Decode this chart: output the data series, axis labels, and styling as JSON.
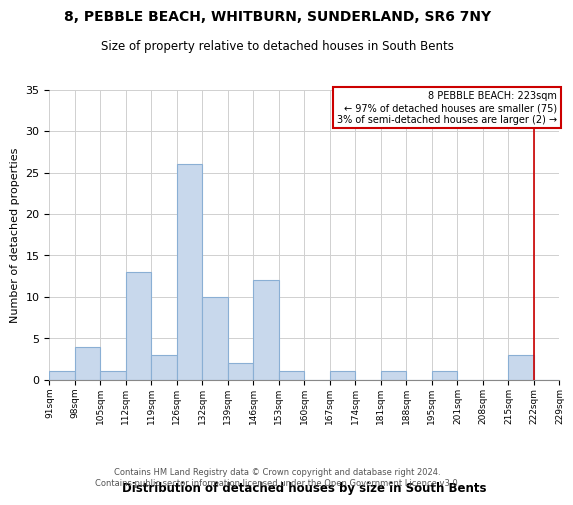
{
  "title": "8, PEBBLE BEACH, WHITBURN, SUNDERLAND, SR6 7NY",
  "subtitle": "Size of property relative to detached houses in South Bents",
  "xlabel": "Distribution of detached houses by size in South Bents",
  "ylabel": "Number of detached properties",
  "categories": [
    "91sqm",
    "98sqm",
    "105sqm",
    "112sqm",
    "119sqm",
    "126sqm",
    "132sqm",
    "139sqm",
    "146sqm",
    "153sqm",
    "160sqm",
    "167sqm",
    "174sqm",
    "181sqm",
    "188sqm",
    "195sqm",
    "201sqm",
    "208sqm",
    "215sqm",
    "222sqm",
    "229sqm"
  ],
  "values": [
    1,
    4,
    1,
    13,
    3,
    26,
    10,
    2,
    12,
    1,
    0,
    1,
    0,
    1,
    0,
    1,
    0,
    0,
    3,
    0
  ],
  "bar_color": "#c8d8ec",
  "bar_edge_color": "#8aafd4",
  "ylim": [
    0,
    35
  ],
  "yticks": [
    0,
    5,
    10,
    15,
    20,
    25,
    30,
    35
  ],
  "annotation_box_color": "#cc0000",
  "property_line_label": "8 PEBBLE BEACH: 223sqm",
  "pct_smaller": "97%",
  "count_smaller": 75,
  "pct_larger": "3%",
  "count_larger": 2,
  "footer_line1": "Contains HM Land Registry data © Crown copyright and database right 2024.",
  "footer_line2": "Contains public sector information licensed under the Open Government Licence v3.0.",
  "background_color": "#ffffff",
  "grid_color": "#d0d0d0"
}
